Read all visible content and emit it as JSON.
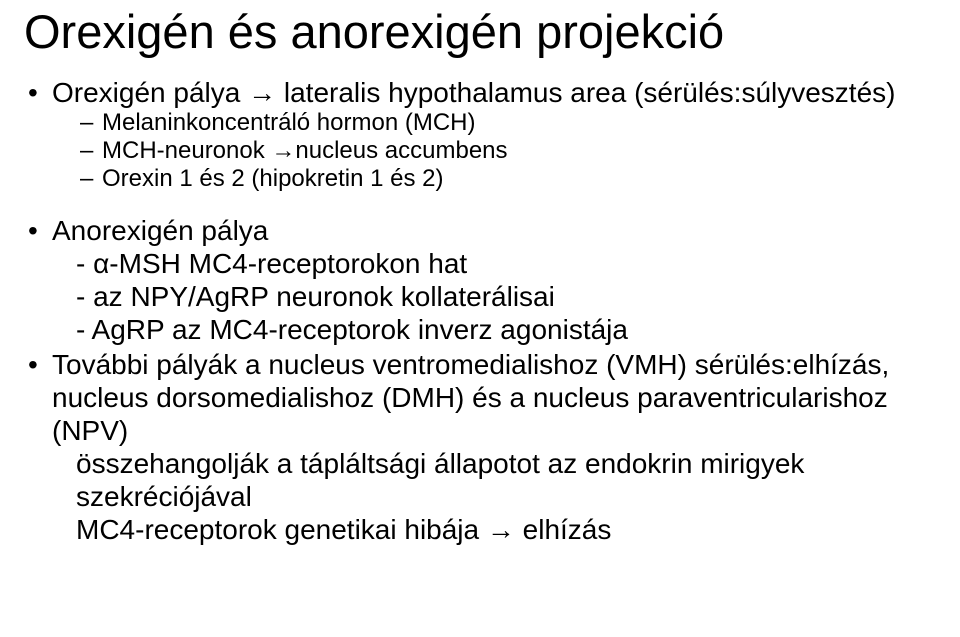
{
  "colors": {
    "background": "#ffffff",
    "text": "#000000"
  },
  "typography": {
    "font_family": "Arial",
    "title_fontsize_pt": 36,
    "body_fontsize_pt": 21,
    "sublist_fontsize_pt": 18
  },
  "title": "Orexigén és anorexigén projekció",
  "items": [
    {
      "text": "Orexigén pálya → lateralis hypothalamus area (sérülés:súlyvesztés)",
      "sub": [
        "Melaninkoncentráló hormon (MCH)",
        "MCH-neuronok →nucleus accumbens",
        "Orexin 1 és 2 (hipokretin 1 és 2)"
      ]
    },
    {
      "text": "Anorexigén pálya",
      "extra": [
        "- α-MSH  MC4-receptorokon hat",
        "- az NPY/AgRP neuronok kollaterálisai",
        "- AgRP az MC4-receptorok inverz agonistája"
      ]
    },
    {
      "text": "További pályák a nucleus ventromedialishoz (VMH) sérülés:elhízás, nucleus dorsomedialishoz (DMH) és a nucleus paraventricularishoz (NPV)",
      "extra": [
        "összehangolják a tápláltsági állapotot az endokrin mirigyek szekréciójával",
        "MC4-receptorok genetikai hibája → elhízás"
      ]
    }
  ]
}
